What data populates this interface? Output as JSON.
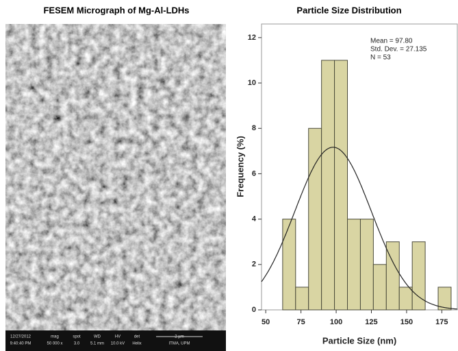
{
  "micrograph": {
    "title": "FESEM Micrograph of Mg-Al-LDHs",
    "info": [
      [
        "12/27/2012",
        "9:40:40 PM"
      ],
      [
        "mag",
        "50 000 x"
      ],
      [
        "spot",
        "3.0"
      ],
      [
        "WD",
        "5.1 mm"
      ],
      [
        "HV",
        "10.0 kV"
      ],
      [
        "det",
        "Helix"
      ],
      [
        "2 µm",
        "ITMA, UPM"
      ]
    ]
  },
  "chart_data": {
    "type": "histogram",
    "title": "Particle Size Distribution",
    "x_label": "Particle Size (nm)",
    "y_label": "Frequency (%)",
    "bins": [
      62,
      71.2,
      80.4,
      89.6,
      98.8,
      108,
      117.2,
      126.4,
      135.6,
      144.8,
      154,
      163.2,
      172.4,
      181.6
    ],
    "values": [
      4,
      1,
      8,
      11,
      11,
      4,
      4,
      2,
      3,
      1,
      3,
      0,
      1
    ],
    "color": "#d9d5a3",
    "edge_color": "#4a4a3a",
    "annotations": [
      "Mean = 97.80",
      "Std. Dev. = 27.135",
      "N = 53"
    ],
    "normal_curve": {
      "mean": 97.8,
      "sd": 27.135,
      "n": 53,
      "color": "#222222"
    },
    "xlim": [
      47,
      186
    ],
    "ylim": [
      0,
      12.6
    ],
    "xticks": [
      50,
      75,
      100,
      125,
      150,
      175
    ],
    "yticks": [
      0,
      2,
      4,
      6,
      8,
      10,
      12
    ]
  }
}
